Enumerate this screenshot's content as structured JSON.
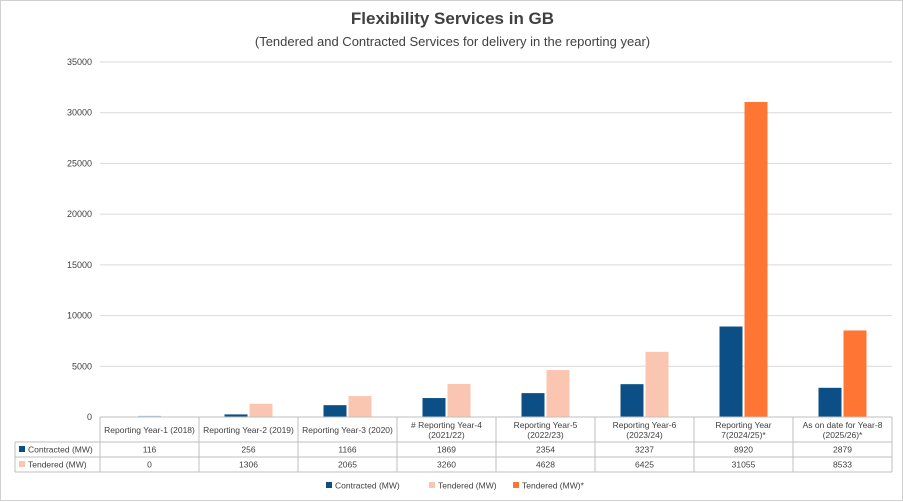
{
  "title": "Flexibility Services in GB",
  "subtitle": "(Tendered and Contracted Services for delivery in the reporting year)",
  "colors": {
    "contracted": "#0B4F86",
    "tendered": "#FBC6B1",
    "tendered_star": "#FF7534",
    "first_bar": "#A9C6DC",
    "grid": "#d9d9d9",
    "table_border": "#bfbfbf"
  },
  "chart_data": {
    "type": "bar",
    "title": "Flexibility Services in GB",
    "subtitle": "(Tendered and Contracted Services for delivery in the reporting year)",
    "categories": [
      [
        "Reporting Year-1 (2018)"
      ],
      [
        "Reporting Year-2 (2019)"
      ],
      [
        "Reporting Year-3 (2020)"
      ],
      [
        "# Reporting Year-4",
        "(2021/22)"
      ],
      [
        "Reporting Year-5",
        "(2022/23)"
      ],
      [
        "Reporting Year-6",
        "(2023/24)"
      ],
      [
        "Reporting Year",
        "7(2024/25)*"
      ],
      [
        "As on date for Year-8",
        "(2025/26)*"
      ]
    ],
    "series": [
      {
        "name": "Contracted (MW)",
        "values": [
          116,
          256,
          1166,
          1869,
          2354,
          3237,
          8920,
          2879
        ]
      },
      {
        "name": "Tendered (MW)",
        "values": [
          0,
          1306,
          2065,
          3260,
          4628,
          6425,
          31055,
          8533
        ]
      }
    ],
    "starred_categories": [
      6,
      7
    ],
    "legend": [
      "Contracted (MW)",
      "Tendered (MW)",
      "Tendered (MW)*"
    ],
    "legend_position": "bottom",
    "ylim": [
      0,
      35000
    ],
    "yticks": [
      0,
      5000,
      10000,
      15000,
      20000,
      25000,
      30000,
      35000
    ],
    "data_table": true,
    "grid": true
  }
}
